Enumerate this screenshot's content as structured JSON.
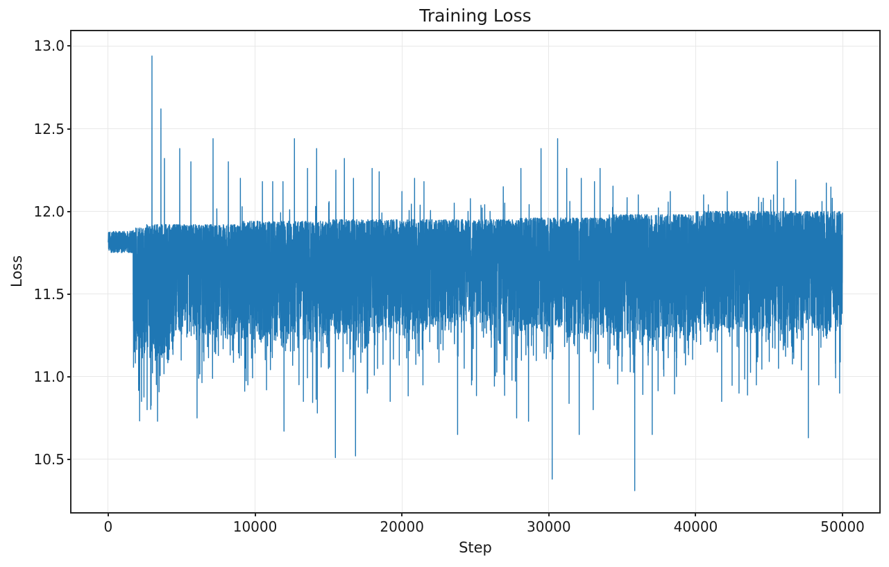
{
  "figure": {
    "title": "Training Loss",
    "xlabel": "Step",
    "ylabel": "Loss"
  },
  "chart_data": {
    "type": "line",
    "title": "Training Loss",
    "xlabel": "Step",
    "ylabel": "Loss",
    "legend": "none",
    "grid": true,
    "series_name": "training-loss",
    "series_color": "#1f77b4",
    "n_steps": 50000,
    "xlim": [
      -2500,
      52500
    ],
    "ylim": [
      10.18,
      13.09
    ],
    "xticks": [
      0,
      10000,
      20000,
      30000,
      40000,
      50000
    ],
    "xtick_labels": [
      "0",
      "10000",
      "20000",
      "30000",
      "40000",
      "50000"
    ],
    "yticks": [
      10.5,
      11.0,
      11.5,
      12.0,
      12.5,
      13.0
    ],
    "ytick_labels": [
      "10.5",
      "11.0",
      "11.5",
      "12.0",
      "12.5",
      "13.0"
    ],
    "y_max_observed": 12.94,
    "y_min_observed": 10.31,
    "envelope": [
      {
        "from": 0,
        "to": 1700,
        "low": 11.75,
        "high": 11.88
      },
      {
        "from": 1700,
        "to": 2600,
        "low": 11.15,
        "high": 11.9
      },
      {
        "from": 2600,
        "to": 4500,
        "low": 11.1,
        "high": 11.92
      },
      {
        "from": 4500,
        "to": 9000,
        "low": 11.25,
        "high": 11.92
      },
      {
        "from": 9000,
        "to": 15000,
        "low": 11.22,
        "high": 11.94
      },
      {
        "from": 15000,
        "to": 22000,
        "low": 11.25,
        "high": 11.95
      },
      {
        "from": 22000,
        "to": 28000,
        "low": 11.3,
        "high": 11.95
      },
      {
        "from": 28000,
        "to": 34000,
        "low": 11.25,
        "high": 11.96
      },
      {
        "from": 34000,
        "to": 40000,
        "low": 11.22,
        "high": 11.98
      },
      {
        "from": 40000,
        "to": 50000,
        "low": 11.27,
        "high": 12.0
      }
    ],
    "notable_peaks": [
      {
        "step": 2980,
        "loss": 12.94
      },
      {
        "step": 3590,
        "loss": 12.62
      },
      {
        "step": 3830,
        "loss": 12.32
      },
      {
        "step": 4870,
        "loss": 12.38
      },
      {
        "step": 5630,
        "loss": 12.3
      },
      {
        "step": 7140,
        "loss": 12.44
      },
      {
        "step": 8180,
        "loss": 12.3
      },
      {
        "step": 9000,
        "loss": 12.2
      },
      {
        "step": 10500,
        "loss": 12.18
      },
      {
        "step": 11200,
        "loss": 12.18
      },
      {
        "step": 11900,
        "loss": 12.18
      },
      {
        "step": 12680,
        "loss": 12.44
      },
      {
        "step": 13570,
        "loss": 12.26
      },
      {
        "step": 14190,
        "loss": 12.38
      },
      {
        "step": 15500,
        "loss": 12.25
      },
      {
        "step": 16080,
        "loss": 12.32
      },
      {
        "step": 16700,
        "loss": 12.2
      },
      {
        "step": 17970,
        "loss": 12.26
      },
      {
        "step": 18450,
        "loss": 12.24
      },
      {
        "step": 20000,
        "loss": 12.12
      },
      {
        "step": 20860,
        "loss": 12.2
      },
      {
        "step": 21500,
        "loss": 12.18
      },
      {
        "step": 23560,
        "loss": 12.05
      },
      {
        "step": 24500,
        "loss": 12.0
      },
      {
        "step": 26000,
        "loss": 12.0
      },
      {
        "step": 27000,
        "loss": 12.05
      },
      {
        "step": 28100,
        "loss": 12.26
      },
      {
        "step": 29470,
        "loss": 12.38
      },
      {
        "step": 30600,
        "loss": 12.44
      },
      {
        "step": 31220,
        "loss": 12.26
      },
      {
        "step": 32210,
        "loss": 12.2
      },
      {
        "step": 33110,
        "loss": 12.18
      },
      {
        "step": 33490,
        "loss": 12.26
      },
      {
        "step": 36090,
        "loss": 12.1
      },
      {
        "step": 38270,
        "loss": 12.12
      },
      {
        "step": 40540,
        "loss": 12.1
      },
      {
        "step": 42150,
        "loss": 12.12
      },
      {
        "step": 44600,
        "loss": 12.08
      },
      {
        "step": 45300,
        "loss": 12.1
      },
      {
        "step": 46000,
        "loss": 12.08
      },
      {
        "step": 48600,
        "loss": 12.06
      },
      {
        "step": 49300,
        "loss": 12.08
      }
    ],
    "notable_dips": [
      {
        "step": 2270,
        "loss": 10.85
      },
      {
        "step": 2650,
        "loss": 10.8
      },
      {
        "step": 3360,
        "loss": 10.73
      },
      {
        "step": 4970,
        "loss": 11.1
      },
      {
        "step": 6050,
        "loss": 10.75
      },
      {
        "step": 7240,
        "loss": 11.15
      },
      {
        "step": 9510,
        "loss": 10.95
      },
      {
        "step": 10780,
        "loss": 10.92
      },
      {
        "step": 11970,
        "loss": 10.67
      },
      {
        "step": 13290,
        "loss": 10.85
      },
      {
        "step": 14240,
        "loss": 10.78
      },
      {
        "step": 15470,
        "loss": 10.51
      },
      {
        "step": 16840,
        "loss": 10.52
      },
      {
        "step": 17640,
        "loss": 10.9
      },
      {
        "step": 19200,
        "loss": 10.85
      },
      {
        "step": 21430,
        "loss": 10.95
      },
      {
        "step": 23790,
        "loss": 10.65
      },
      {
        "step": 24740,
        "loss": 10.95
      },
      {
        "step": 27810,
        "loss": 10.75
      },
      {
        "step": 28620,
        "loss": 10.73
      },
      {
        "step": 30230,
        "loss": 10.38
      },
      {
        "step": 32070,
        "loss": 10.65
      },
      {
        "step": 33020,
        "loss": 10.8
      },
      {
        "step": 35850,
        "loss": 10.31
      },
      {
        "step": 37040,
        "loss": 10.65
      },
      {
        "step": 38690,
        "loss": 11.0
      },
      {
        "step": 41770,
        "loss": 10.85
      },
      {
        "step": 42950,
        "loss": 10.9
      },
      {
        "step": 44130,
        "loss": 10.95
      },
      {
        "step": 45640,
        "loss": 11.05
      },
      {
        "step": 47670,
        "loss": 10.63
      },
      {
        "step": 48380,
        "loss": 10.95
      },
      {
        "step": 49800,
        "loss": 10.9
      }
    ]
  },
  "colors": {
    "line": "#1f77b4",
    "grid": "#e8e8e8",
    "spine": "#262626",
    "text": "#1a1a1a",
    "background": "#ffffff"
  }
}
